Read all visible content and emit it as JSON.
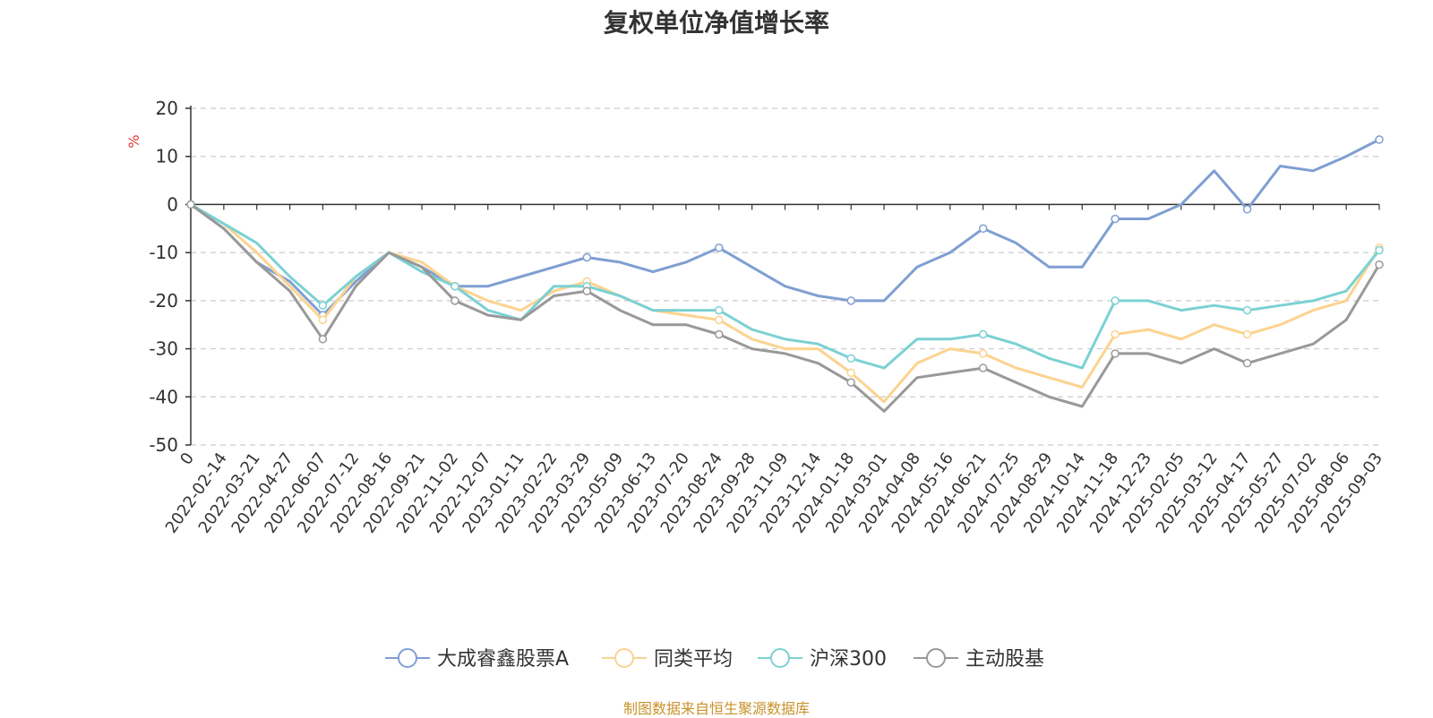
{
  "chart_data": {
    "type": "line",
    "title": "复权单位净值增长率",
    "ylabel": "%",
    "xlabel": "",
    "ylim": [
      -50,
      20
    ],
    "yticks": [
      20,
      10,
      0,
      -10,
      -20,
      -30,
      -40,
      -50
    ],
    "grid": true,
    "legend_position": "bottom",
    "source": "制图数据来自恒生聚源数据库",
    "categories": [
      "0",
      "2022-02-14",
      "2022-03-21",
      "2022-04-27",
      "2022-06-07",
      "2022-07-12",
      "2022-08-16",
      "2022-09-21",
      "2022-11-02",
      "2022-12-07",
      "2023-01-11",
      "2023-02-22",
      "2023-03-29",
      "2023-05-09",
      "2023-06-13",
      "2023-07-20",
      "2023-08-24",
      "2023-09-28",
      "2023-11-09",
      "2023-12-14",
      "2024-01-18",
      "2024-03-01",
      "2024-04-08",
      "2024-05-16",
      "2024-06-21",
      "2024-07-25",
      "2024-08-29",
      "2024-10-14",
      "2024-11-18",
      "2024-12-23",
      "2025-02-05",
      "2025-03-12",
      "2025-04-17",
      "2025-05-27",
      "2025-07-02",
      "2025-08-06",
      "2025-09-03"
    ],
    "series": [
      {
        "name": "大成睿鑫股票A",
        "color": "#7f9fd2",
        "values": [
          0,
          -5,
          -12,
          -16,
          -23,
          -16,
          -10,
          -13,
          -17,
          -17,
          -15,
          -13,
          -11,
          -12,
          -14,
          -12,
          -9,
          -13,
          -17,
          -19,
          -20,
          -20,
          -13,
          -10,
          -5,
          -8,
          -13,
          -13,
          -3,
          -3,
          0,
          7,
          -1,
          8,
          7,
          10,
          13.5
        ]
      },
      {
        "name": "同类平均",
        "color": "#fcd38f",
        "values": [
          0,
          -4,
          -10,
          -17,
          -24,
          -15,
          -10,
          -12,
          -17,
          -20,
          -22,
          -18,
          -16,
          -19,
          -22,
          -23,
          -24,
          -28,
          -30,
          -30,
          -35,
          -41,
          -33,
          -30,
          -31,
          -34,
          -36,
          -38,
          -27,
          -26,
          -28,
          -25,
          -27,
          -25,
          -22,
          -20,
          -9
        ]
      },
      {
        "name": "沪深300",
        "color": "#7bd1d3",
        "values": [
          0,
          -4,
          -8,
          -15,
          -21,
          -15,
          -10,
          -14,
          -17,
          -22,
          -24,
          -17,
          -17,
          -19,
          -22,
          -22,
          -22,
          -26,
          -28,
          -29,
          -32,
          -34,
          -28,
          -28,
          -27,
          -29,
          -32,
          -34,
          -20,
          -20,
          -22,
          -21,
          -22,
          -21,
          -20,
          -18,
          -9.5
        ]
      },
      {
        "name": "主动股基",
        "color": "#999999",
        "values": [
          0,
          -5,
          -12,
          -18,
          -28,
          -17,
          -10,
          -13,
          -20,
          -23,
          -24,
          -19,
          -18,
          -22,
          -25,
          -25,
          -27,
          -30,
          -31,
          -33,
          -37,
          -43,
          -36,
          -35,
          -34,
          -37,
          -40,
          -42,
          -31,
          -31,
          -33,
          -30,
          -33,
          -31,
          -29,
          -24,
          -12.5
        ]
      }
    ]
  }
}
